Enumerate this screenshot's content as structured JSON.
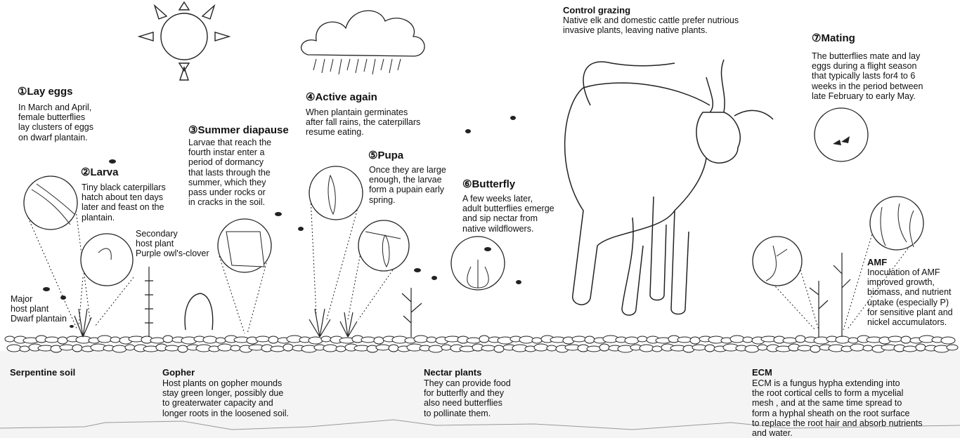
{
  "stages": {
    "lay_eggs": {
      "title": "①Lay eggs",
      "text": "In March and April,\nfemale butterflies\nlay clusters of eggs\non dwarf plantain."
    },
    "larva": {
      "title": "②Larva",
      "text": "Tiny black caterpillars\nhatch about ten days\nlater and feast on the\nplantain."
    },
    "summer_diapause": {
      "title": "③Summer diapause",
      "text": "Larvae that reach the\nfourth instar enter a\nperiod of dormancy\nthat lasts through the\nsummer, which they\npass under rocks or\nin cracks in the soil."
    },
    "active_again": {
      "title": "④Active again",
      "text": "When plantain germinates\nafter fall rains, the caterpillars\nresume eating."
    },
    "pupa": {
      "title": "⑤Pupa",
      "text": "Once they are large\nenough, the larvae\nform a pupain early\nspring."
    },
    "butterfly": {
      "title": "⑥Butterfly",
      "text": "A few weeks later,\nadult butterflies emerge\nand sip nectar from\nnative wildflowers."
    },
    "mating": {
      "title": "⑦Mating",
      "text": "The butterflies mate and lay\neggs during a flight season\nthat typically lasts for4 to 6\nweeks in the period between\nlate February to early May."
    }
  },
  "notes": {
    "control_grazing": {
      "title": "Control grazing",
      "text": "Native elk and domestic cattle prefer nutrious\ninvasive plants, leaving native plants."
    },
    "secondary_host": "Secondary\nhost plant\nPurple owl's-clover",
    "major_host": "Major\nhost plant\nDwarf plantain",
    "amf": {
      "title": "AMF",
      "text": "Inoculation of AMF\nimproved growth,\nbiomass, and nutrient\n uptake (especially P)\nfor sensitive plant and\nnickel accumulators."
    },
    "serpentine": "Serpentine soil",
    "gopher": {
      "title": "Gopher",
      "text": "Host plants on gopher mounds\nstay green longer, possibly due\nto greaterwater capacity and\nlonger roots in the loosened soil."
    },
    "nectar": {
      "title": "Nectar plants",
      "text": "They can provide food\nfor butterfly and they\nalso need butterflies\nto pollinate them."
    },
    "ecm": {
      "title": "ECM",
      "text": "ECM is a fungus hypha extending into\nthe root cortical cells to form a mycelial\nmesh , and at the same time spread to\nform a hyphal sheath on the root surface\nto replace the root hair and absorb nutrients\nand water."
    }
  }
}
